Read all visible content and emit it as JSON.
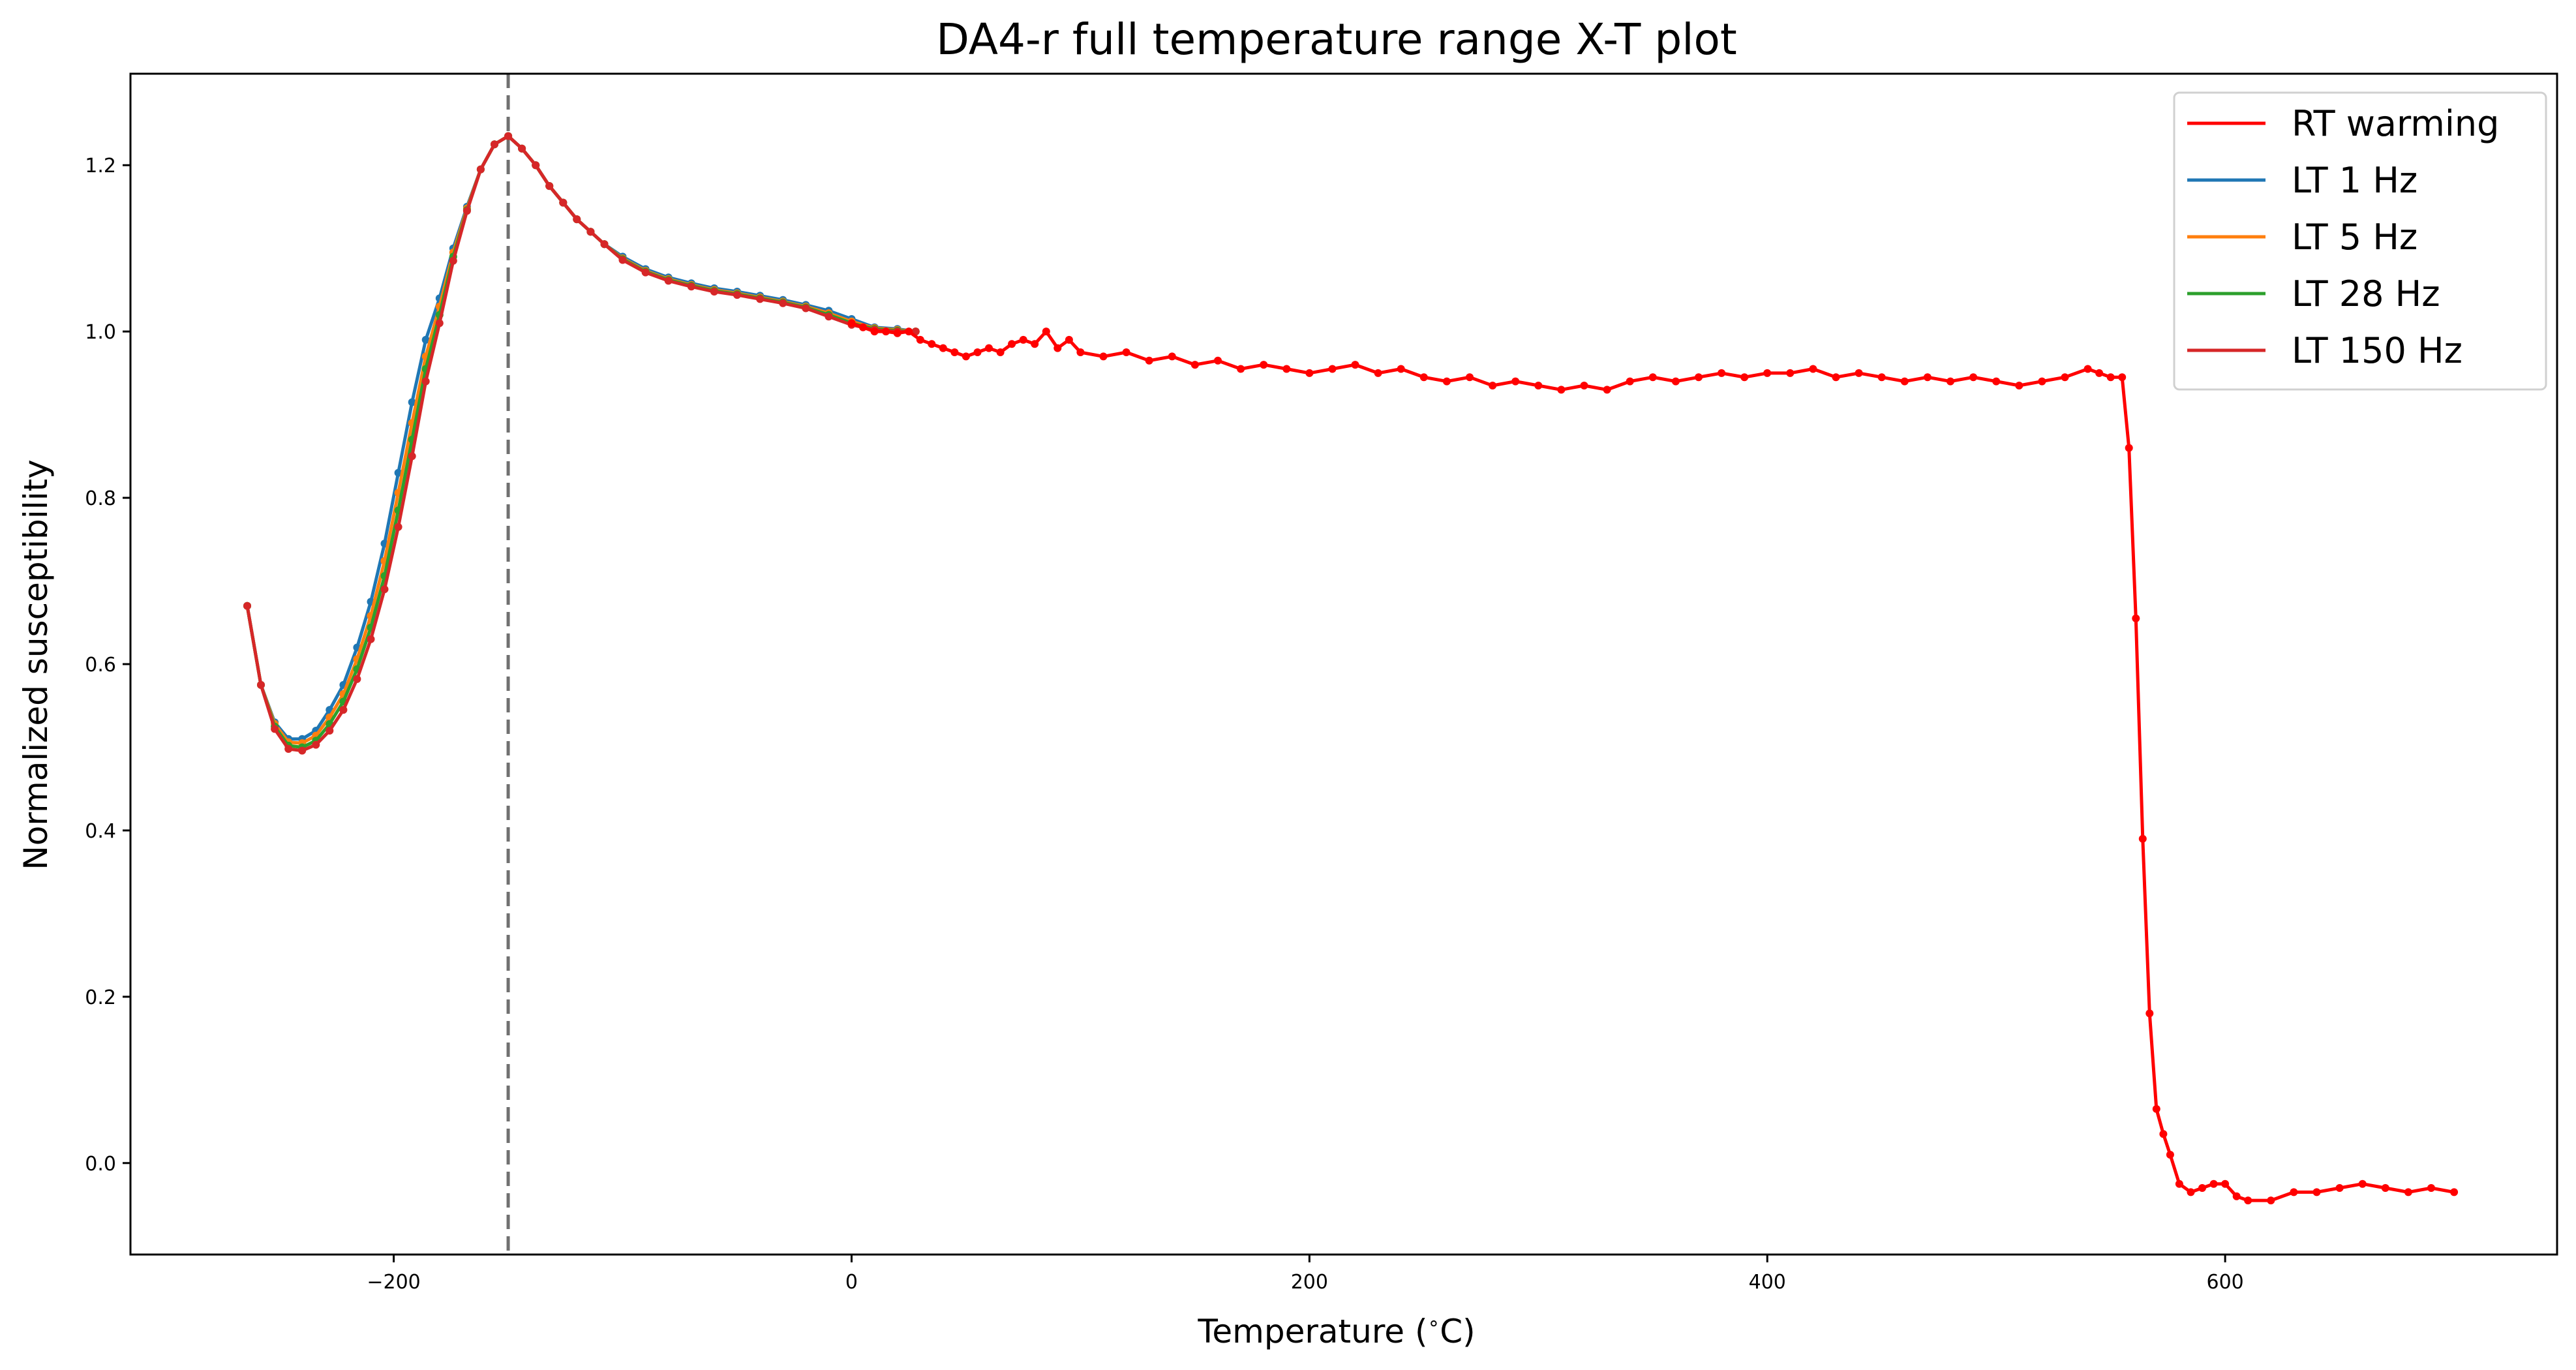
{
  "chart_data": {
    "type": "line",
    "title": "DA4-r full temperature range X-T plot",
    "xlabel": "Temperature ($^\\circ$C)",
    "xlabel_main": "Temperature (",
    "xlabel_unit": "C)",
    "ylabel": "Normalized susceptibility",
    "xlim": [
      -315,
      745
    ],
    "ylim": [
      -0.11,
      1.31
    ],
    "xticks": [
      -200,
      0,
      200,
      400,
      600
    ],
    "xtick_labels": [
      "−200",
      "0",
      "200",
      "400",
      "600"
    ],
    "yticks": [
      0.0,
      0.2,
      0.4,
      0.6,
      0.8,
      1.0,
      1.2
    ],
    "ytick_labels": [
      "0.0",
      "0.2",
      "0.4",
      "0.6",
      "0.8",
      "1.0",
      "1.2"
    ],
    "grid": false,
    "legend_position": "top-right",
    "vline": {
      "x": -150,
      "style": "dashed",
      "color": "#707070"
    },
    "series": [
      {
        "name": "RT warming",
        "color": "#ff0000",
        "x": [
          0,
          5,
          10,
          15,
          20,
          25,
          30,
          35,
          40,
          45,
          50,
          55,
          60,
          65,
          70,
          75,
          80,
          85,
          90,
          95,
          100,
          110,
          120,
          130,
          140,
          150,
          160,
          170,
          180,
          190,
          200,
          210,
          220,
          230,
          240,
          250,
          260,
          270,
          280,
          290,
          300,
          310,
          320,
          330,
          340,
          350,
          360,
          370,
          380,
          390,
          400,
          410,
          420,
          430,
          440,
          450,
          460,
          470,
          480,
          490,
          500,
          510,
          520,
          530,
          540,
          545,
          550,
          555,
          558,
          561,
          564,
          567,
          570,
          573,
          576,
          580,
          585,
          590,
          595,
          600,
          605,
          610,
          620,
          630,
          640,
          650,
          660,
          670,
          680,
          690,
          700
        ],
        "y": [
          1.01,
          1.005,
          1.0,
          1.0,
          0.998,
          1.0,
          0.99,
          0.985,
          0.98,
          0.975,
          0.97,
          0.975,
          0.98,
          0.975,
          0.985,
          0.99,
          0.985,
          1.0,
          0.98,
          0.99,
          0.975,
          0.97,
          0.975,
          0.965,
          0.97,
          0.96,
          0.965,
          0.955,
          0.96,
          0.955,
          0.95,
          0.955,
          0.96,
          0.95,
          0.955,
          0.945,
          0.94,
          0.945,
          0.935,
          0.94,
          0.935,
          0.93,
          0.935,
          0.93,
          0.94,
          0.945,
          0.94,
          0.945,
          0.95,
          0.945,
          0.95,
          0.95,
          0.955,
          0.945,
          0.95,
          0.945,
          0.94,
          0.945,
          0.94,
          0.945,
          0.94,
          0.935,
          0.94,
          0.945,
          0.955,
          0.95,
          0.945,
          0.945,
          0.86,
          0.655,
          0.39,
          0.18,
          0.065,
          0.035,
          0.01,
          -0.025,
          -0.035,
          -0.03,
          -0.025,
          -0.025,
          -0.04,
          -0.045,
          -0.045,
          -0.035,
          -0.035,
          -0.03,
          -0.025,
          -0.03,
          -0.035,
          -0.03,
          -0.035
        ]
      },
      {
        "name": "LT 1 Hz",
        "color": "#1f77b4",
        "x": [
          -264,
          -258,
          -252,
          -246,
          -240,
          -234,
          -228,
          -222,
          -216,
          -210,
          -204,
          -198,
          -192,
          -186,
          -180,
          -174,
          -168,
          -162,
          -156,
          -150,
          -144,
          -138,
          -132,
          -126,
          -120,
          -114,
          -108,
          -100,
          -90,
          -80,
          -70,
          -60,
          -50,
          -40,
          -30,
          -20,
          -10,
          0,
          10,
          20,
          28
        ],
        "y": [
          0.67,
          0.575,
          0.53,
          0.51,
          0.51,
          0.52,
          0.545,
          0.575,
          0.62,
          0.675,
          0.745,
          0.83,
          0.915,
          0.99,
          1.04,
          1.1,
          1.15,
          1.195,
          1.225,
          1.235,
          1.22,
          1.2,
          1.175,
          1.155,
          1.135,
          1.12,
          1.105,
          1.09,
          1.075,
          1.065,
          1.058,
          1.052,
          1.048,
          1.043,
          1.038,
          1.032,
          1.025,
          1.015,
          1.005,
          1.003,
          1.0
        ]
      },
      {
        "name": "LT 5 Hz",
        "color": "#ff7f0e",
        "x": [
          -264,
          -258,
          -252,
          -246,
          -240,
          -234,
          -228,
          -222,
          -216,
          -210,
          -204,
          -198,
          -192,
          -186,
          -180,
          -174,
          -168,
          -162,
          -156,
          -150,
          -144,
          -138,
          -132,
          -126,
          -120,
          -114,
          -108,
          -100,
          -90,
          -80,
          -70,
          -60,
          -50,
          -40,
          -30,
          -20,
          -10,
          0,
          10,
          20,
          28
        ],
        "y": [
          0.67,
          0.575,
          0.528,
          0.506,
          0.505,
          0.514,
          0.536,
          0.564,
          0.606,
          0.658,
          0.724,
          0.806,
          0.89,
          0.97,
          1.03,
          1.095,
          1.148,
          1.195,
          1.225,
          1.235,
          1.22,
          1.2,
          1.175,
          1.155,
          1.135,
          1.12,
          1.105,
          1.088,
          1.073,
          1.063,
          1.056,
          1.05,
          1.046,
          1.041,
          1.036,
          1.03,
          1.022,
          1.012,
          1.004,
          1.002,
          1.0
        ]
      },
      {
        "name": "LT 28 Hz",
        "color": "#2ca02c",
        "x": [
          -264,
          -258,
          -252,
          -246,
          -240,
          -234,
          -228,
          -222,
          -216,
          -210,
          -204,
          -198,
          -192,
          -186,
          -180,
          -174,
          -168,
          -162,
          -156,
          -150,
          -144,
          -138,
          -132,
          -126,
          -120,
          -114,
          -108,
          -100,
          -90,
          -80,
          -70,
          -60,
          -50,
          -40,
          -30,
          -20,
          -10,
          0,
          10,
          20,
          28
        ],
        "y": [
          0.67,
          0.575,
          0.525,
          0.502,
          0.5,
          0.508,
          0.528,
          0.555,
          0.594,
          0.644,
          0.706,
          0.785,
          0.87,
          0.955,
          1.02,
          1.09,
          1.146,
          1.195,
          1.225,
          1.235,
          1.22,
          1.2,
          1.175,
          1.155,
          1.135,
          1.12,
          1.105,
          1.087,
          1.072,
          1.062,
          1.055,
          1.049,
          1.045,
          1.04,
          1.035,
          1.029,
          1.02,
          1.01,
          1.003,
          1.001,
          1.0
        ]
      },
      {
        "name": "LT 150 Hz",
        "color": "#d62728",
        "x": [
          -264,
          -258,
          -252,
          -246,
          -240,
          -234,
          -228,
          -222,
          -216,
          -210,
          -204,
          -198,
          -192,
          -186,
          -180,
          -174,
          -168,
          -162,
          -156,
          -150,
          -144,
          -138,
          -132,
          -126,
          -120,
          -114,
          -108,
          -100,
          -90,
          -80,
          -70,
          -60,
          -50,
          -40,
          -30,
          -20,
          -10,
          0,
          10,
          20,
          28
        ],
        "y": [
          0.67,
          0.575,
          0.522,
          0.498,
          0.496,
          0.503,
          0.52,
          0.545,
          0.582,
          0.63,
          0.69,
          0.765,
          0.85,
          0.94,
          1.01,
          1.085,
          1.145,
          1.195,
          1.225,
          1.235,
          1.22,
          1.2,
          1.175,
          1.155,
          1.135,
          1.12,
          1.105,
          1.086,
          1.071,
          1.061,
          1.054,
          1.048,
          1.044,
          1.039,
          1.034,
          1.028,
          1.018,
          1.008,
          1.002,
          1.0,
          1.0
        ]
      }
    ]
  }
}
